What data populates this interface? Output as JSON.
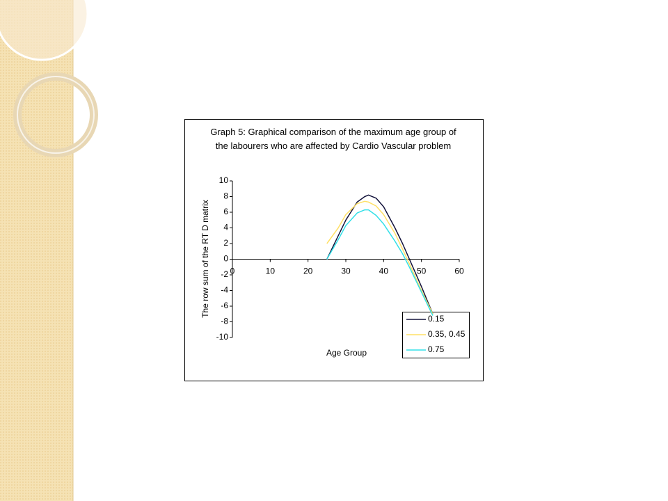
{
  "chart_data": {
    "type": "line",
    "title": "Graph 5: Graphical comparison of the maximum age group of the labourers who are affected by Cardio Vascular problem",
    "x_label": "Age Group",
    "y_label": "The row sum of the RT D matrix",
    "x": [
      25,
      28,
      30,
      33,
      35,
      36,
      38,
      40,
      43,
      45,
      47,
      50,
      53
    ],
    "series": [
      {
        "name": "0.15",
        "color": "#14143c",
        "values": [
          0,
          3,
          5,
          7.3,
          8,
          8.2,
          7.8,
          6.7,
          4,
          2,
          -0.2,
          -3.5,
          -7
        ]
      },
      {
        "name": "0.35, 0.45",
        "color": "#ffe066",
        "values": [
          2,
          4,
          5.7,
          7.1,
          7.4,
          7.3,
          6.8,
          5.7,
          3.3,
          1.3,
          -0.8,
          -4,
          -7
        ]
      },
      {
        "name": "0.75",
        "color": "#33e0e8",
        "values": [
          0,
          2.5,
          4.3,
          5.9,
          6.3,
          6.3,
          5.6,
          4.5,
          2.3,
          0.7,
          -1.2,
          -4.2,
          -7.2
        ]
      }
    ],
    "xlim": [
      0,
      60
    ],
    "xticks": [
      0,
      10,
      20,
      30,
      40,
      50,
      60
    ],
    "ylim": [
      -10,
      10
    ],
    "yticks": [
      -10,
      -8,
      -6,
      -4,
      -2,
      0,
      2,
      4,
      6,
      8,
      10
    ],
    "legend": "bottom-right"
  }
}
